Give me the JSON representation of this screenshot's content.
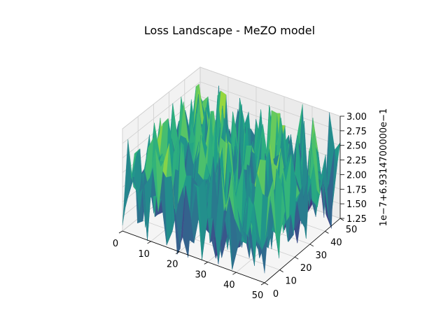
{
  "chart_data": {
    "type": "surface3d",
    "title": "Loss Landscape - MeZO model",
    "colormap": "viridis",
    "grid": true,
    "x_ticks": [
      "0",
      "10",
      "20",
      "30",
      "40",
      "50"
    ],
    "y_ticks": [
      "0",
      "10",
      "20",
      "30",
      "40",
      "50"
    ],
    "z_ticks": [
      "1.25",
      "1.50",
      "1.75",
      "2.00",
      "2.25",
      "2.50",
      "2.75",
      "3.00"
    ],
    "x_range": [
      0,
      50
    ],
    "y_range": [
      0,
      50
    ],
    "z_range": [
      1.25,
      3.0
    ],
    "z_offset_label": "1e−7+6.9314700000e−1",
    "surface": {
      "grid_size": 51,
      "baseline": 1.25,
      "mean_level": 2.0,
      "max_level": 3.0,
      "min_level": 1.15,
      "note_values": "noisy surface of loss offsets (×1e-7 + 0.69314700000)"
    }
  }
}
